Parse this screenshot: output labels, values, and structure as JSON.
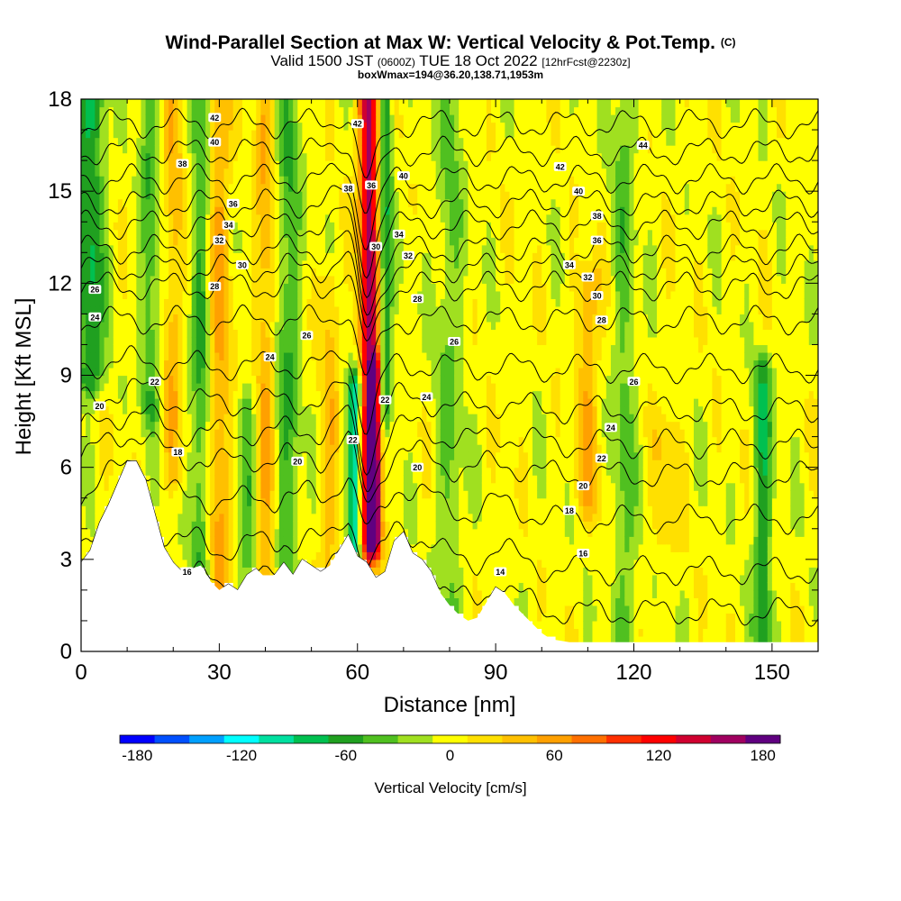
{
  "title": {
    "main": "Wind-Parallel Section at Max W: Vertical Velocity & Pot.Temp.",
    "copyright": "(C)",
    "valid_prefix": "Valid 1500 JST",
    "valid_z": "(0600Z)",
    "valid_date": "TUE 18 Oct 2022",
    "forecast": "[12hrFcst@2230z]",
    "box": "boxWmax=194@36.20,138.71,1953m"
  },
  "chart_data": {
    "type": "heatmap",
    "xlabel": "Distance [nm]",
    "ylabel": "Height [Kft MSL]",
    "xlim": [
      0,
      160
    ],
    "ylim": [
      0,
      18
    ],
    "x_ticks": [
      "0",
      "30",
      "60",
      "90",
      "120",
      "150"
    ],
    "y_ticks": [
      "0",
      "3",
      "6",
      "9",
      "12",
      "15",
      "18"
    ],
    "colorbar": {
      "label": "Vertical Velocity [cm/s]",
      "range": [
        -180,
        180
      ],
      "ticks": [
        "-180",
        "-120",
        "-60",
        "0",
        "60",
        "120",
        "180"
      ],
      "colors": [
        "#0000ff",
        "#0050ff",
        "#00a0ff",
        "#00ffff",
        "#00e0a0",
        "#00c050",
        "#20a020",
        "#50c020",
        "#a0e020",
        "#ffff00",
        "#ffe000",
        "#ffc000",
        "#ffa000",
        "#ff7000",
        "#ff3000",
        "#ff0000",
        "#d00030",
        "#a00060",
        "#600080"
      ]
    },
    "terrain_kft": [
      [
        0,
        2.9
      ],
      [
        2,
        3.3
      ],
      [
        4,
        4.2
      ],
      [
        6,
        4.8
      ],
      [
        8,
        5.5
      ],
      [
        10,
        6.2
      ],
      [
        12,
        6.2
      ],
      [
        14,
        5.6
      ],
      [
        16,
        4.5
      ],
      [
        18,
        3.4
      ],
      [
        20,
        2.9
      ],
      [
        22,
        2.6
      ],
      [
        24,
        2.7
      ],
      [
        26,
        2.8
      ],
      [
        28,
        2.3
      ],
      [
        30,
        2.0
      ],
      [
        32,
        2.2
      ],
      [
        34,
        2.0
      ],
      [
        36,
        2.5
      ],
      [
        38,
        2.7
      ],
      [
        40,
        2.4
      ],
      [
        42,
        2.5
      ],
      [
        44,
        2.9
      ],
      [
        46,
        2.5
      ],
      [
        48,
        3.0
      ],
      [
        50,
        2.8
      ],
      [
        52,
        2.6
      ],
      [
        54,
        2.8
      ],
      [
        56,
        3.3
      ],
      [
        58,
        3.8
      ],
      [
        60,
        3.1
      ],
      [
        62,
        2.9
      ],
      [
        64,
        2.4
      ],
      [
        66,
        2.6
      ],
      [
        68,
        3.6
      ],
      [
        70,
        3.9
      ],
      [
        72,
        3.2
      ],
      [
        74,
        3.0
      ],
      [
        76,
        2.6
      ],
      [
        78,
        1.9
      ],
      [
        80,
        1.5
      ],
      [
        82,
        1.2
      ],
      [
        84,
        1.0
      ],
      [
        86,
        1.1
      ],
      [
        88,
        1.6
      ],
      [
        90,
        2.1
      ],
      [
        92,
        1.9
      ],
      [
        94,
        1.5
      ],
      [
        96,
        1.2
      ],
      [
        98,
        0.9
      ],
      [
        100,
        0.6
      ],
      [
        102,
        0.4
      ],
      [
        106,
        0.3
      ],
      [
        160,
        0.3
      ]
    ],
    "updrafts": [
      {
        "x": 62.5,
        "w": 2.2,
        "ymin": 3.5,
        "ymax": 18,
        "value": 150
      },
      {
        "x": 64.0,
        "w": 1.2,
        "ymin": 4.0,
        "ymax": 9,
        "value": 110
      },
      {
        "x": 30.0,
        "w": 2.5,
        "ymin": 2.0,
        "ymax": 18,
        "value": 50
      },
      {
        "x": 40.0,
        "w": 2.0,
        "ymin": 2.5,
        "ymax": 18,
        "value": 45
      },
      {
        "x": 20.0,
        "w": 2.0,
        "ymin": 6,
        "ymax": 18,
        "value": 40
      },
      {
        "x": 110.0,
        "w": 2.5,
        "ymin": 5,
        "ymax": 12,
        "value": 45
      },
      {
        "x": 127.0,
        "w": 3.0,
        "ymin": 4,
        "ymax": 7,
        "value": 25
      },
      {
        "x": 54.0,
        "w": 2.0,
        "ymin": 3,
        "ymax": 12,
        "value": 35
      }
    ],
    "downdrafts": [
      {
        "x": 59.5,
        "w": 1.5,
        "ymin": 3.5,
        "ymax": 8.5,
        "value": -120
      },
      {
        "x": 66.0,
        "w": 1.5,
        "ymin": 8,
        "ymax": 18,
        "value": -70
      },
      {
        "x": 2.0,
        "w": 3.0,
        "ymin": 9,
        "ymax": 18,
        "value": -70
      },
      {
        "x": 26.0,
        "w": 2.0,
        "ymin": 2,
        "ymax": 18,
        "value": -50
      },
      {
        "x": 45.0,
        "w": 2.5,
        "ymin": 3,
        "ymax": 18,
        "value": -45
      },
      {
        "x": 15.0,
        "w": 2.0,
        "ymin": 8,
        "ymax": 18,
        "value": -45
      },
      {
        "x": 148.0,
        "w": 2.0,
        "ymin": 0.5,
        "ymax": 9,
        "value": -60
      },
      {
        "x": 118.0,
        "w": 2.5,
        "ymin": 0.3,
        "ymax": 18,
        "value": -35
      },
      {
        "x": 80.0,
        "w": 3.0,
        "ymin": 1,
        "ymax": 18,
        "value": -30
      },
      {
        "x": 36.0,
        "w": 2.0,
        "ymin": 2,
        "ymax": 8,
        "value": -35
      }
    ],
    "theta_isolines": [
      {
        "label": "14",
        "base": 2.2
      },
      {
        "label": "16",
        "base": 3.4
      },
      {
        "label": "18",
        "base": 4.9
      },
      {
        "label": "20",
        "base": 6.2
      },
      {
        "label": "22",
        "base": 7.1
      },
      {
        "label": "24",
        "base": 8.1
      },
      {
        "label": "26",
        "base": 9.3
      },
      {
        "label": "28",
        "base": 10.8
      },
      {
        "label": "30",
        "base": 11.9
      },
      {
        "label": "32",
        "base": 12.5
      },
      {
        "label": "34",
        "base": 13.1
      },
      {
        "label": "36",
        "base": 13.9
      },
      {
        "label": "38",
        "base": 14.6
      },
      {
        "label": "40",
        "base": 15.4
      },
      {
        "label": "42",
        "base": 16.3
      },
      {
        "label": "44",
        "base": 17.2
      }
    ],
    "contour_labels": [
      {
        "text": "42",
        "x": 29,
        "y": 17.4
      },
      {
        "text": "40",
        "x": 29,
        "y": 16.6
      },
      {
        "text": "38",
        "x": 22,
        "y": 15.9
      },
      {
        "text": "36",
        "x": 33,
        "y": 14.6
      },
      {
        "text": "34",
        "x": 32,
        "y": 13.9
      },
      {
        "text": "32",
        "x": 30,
        "y": 13.4
      },
      {
        "text": "30",
        "x": 35,
        "y": 12.6
      },
      {
        "text": "28",
        "x": 29,
        "y": 11.9
      },
      {
        "text": "26",
        "x": 3,
        "y": 11.8
      },
      {
        "text": "24",
        "x": 3,
        "y": 10.9
      },
      {
        "text": "26",
        "x": 49,
        "y": 10.3
      },
      {
        "text": "24",
        "x": 41,
        "y": 9.6
      },
      {
        "text": "22",
        "x": 16,
        "y": 8.8
      },
      {
        "text": "20",
        "x": 4,
        "y": 8.0
      },
      {
        "text": "18",
        "x": 21,
        "y": 6.5
      },
      {
        "text": "20",
        "x": 47,
        "y": 6.2
      },
      {
        "text": "16",
        "x": 23,
        "y": 2.6
      },
      {
        "text": "42",
        "x": 60,
        "y": 17.2
      },
      {
        "text": "38",
        "x": 58,
        "y": 15.1
      },
      {
        "text": "36",
        "x": 63,
        "y": 15.2
      },
      {
        "text": "40",
        "x": 70,
        "y": 15.5
      },
      {
        "text": "34",
        "x": 69,
        "y": 13.6
      },
      {
        "text": "30",
        "x": 64,
        "y": 13.2
      },
      {
        "text": "32",
        "x": 71,
        "y": 12.9
      },
      {
        "text": "28",
        "x": 73,
        "y": 11.5
      },
      {
        "text": "26",
        "x": 81,
        "y": 10.1
      },
      {
        "text": "22",
        "x": 66,
        "y": 8.2
      },
      {
        "text": "24",
        "x": 75,
        "y": 8.3
      },
      {
        "text": "22",
        "x": 59,
        "y": 6.9
      },
      {
        "text": "20",
        "x": 73,
        "y": 6.0
      },
      {
        "text": "14",
        "x": 91,
        "y": 2.6
      },
      {
        "text": "44",
        "x": 122,
        "y": 16.5
      },
      {
        "text": "42",
        "x": 104,
        "y": 15.8
      },
      {
        "text": "40",
        "x": 108,
        "y": 15.0
      },
      {
        "text": "38",
        "x": 112,
        "y": 14.2
      },
      {
        "text": "36",
        "x": 112,
        "y": 13.4
      },
      {
        "text": "34",
        "x": 106,
        "y": 12.6
      },
      {
        "text": "32",
        "x": 110,
        "y": 12.2
      },
      {
        "text": "30",
        "x": 112,
        "y": 11.6
      },
      {
        "text": "28",
        "x": 113,
        "y": 10.8
      },
      {
        "text": "26",
        "x": 120,
        "y": 8.8
      },
      {
        "text": "24",
        "x": 115,
        "y": 7.3
      },
      {
        "text": "22",
        "x": 113,
        "y": 6.3
      },
      {
        "text": "20",
        "x": 109,
        "y": 5.4
      },
      {
        "text": "18",
        "x": 106,
        "y": 4.6
      },
      {
        "text": "16",
        "x": 109,
        "y": 3.2
      }
    ]
  }
}
